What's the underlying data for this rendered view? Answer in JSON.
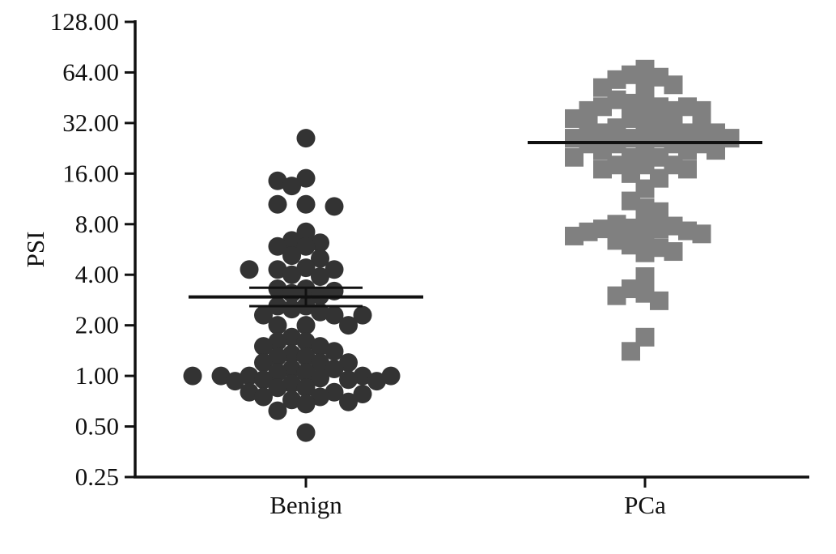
{
  "chart_data": {
    "type": "scatter",
    "title": "",
    "xlabel": "",
    "ylabel": "PSI",
    "yscale": "log2",
    "ylim": [
      0.25,
      128
    ],
    "yticks": [
      "128.00",
      "64.00",
      "32.00",
      "16.00",
      "8.00",
      "4.00",
      "2.00",
      "1.00",
      "0.50",
      "0.25"
    ],
    "yticks_values": [
      128,
      64,
      32,
      16,
      8,
      4,
      2,
      1,
      0.5,
      0.25
    ],
    "categories": [
      "Benign",
      "PCa"
    ],
    "grid": false,
    "legend": "none",
    "series": [
      {
        "category": "Benign",
        "marker": "circle",
        "color": "#333333",
        "mean": 2.95,
        "sem_low": 2.6,
        "sem_high": 3.35,
        "values": [
          26,
          15,
          14.5,
          13.5,
          10.5,
          10.5,
          10.2,
          7.2,
          6.2,
          6.4,
          5.9,
          5.9,
          5.2,
          5.0,
          4.3,
          4.4,
          4.3,
          4.3,
          4.0,
          3.9,
          3.3,
          3.1,
          3.3,
          3.2,
          3.0,
          2.6,
          2.5,
          2.4,
          2.6,
          2.3,
          2.3,
          2.3,
          2.0,
          2.0,
          2.0,
          1.7,
          1.6,
          1.6,
          1.5,
          1.5,
          1.4,
          1.35,
          1.3,
          1.3,
          1.2,
          1.2,
          1.2,
          1.1,
          1.1,
          1.05,
          1.05,
          1.0,
          1.0,
          1.0,
          1.0,
          1.0,
          0.97,
          0.95,
          0.95,
          0.93,
          0.93,
          0.9,
          0.85,
          0.85,
          0.8,
          0.8,
          0.78,
          0.75,
          0.75,
          0.72,
          0.7,
          0.68,
          0.62,
          0.46
        ]
      },
      {
        "category": "PCa",
        "marker": "square",
        "color": "#808080",
        "mean": 24.5,
        "values": [
          67,
          62,
          60,
          58,
          54,
          54,
          52,
          44,
          44,
          42,
          40,
          40,
          40,
          38,
          38,
          38,
          36,
          34,
          34,
          32,
          30,
          30,
          30,
          30,
          28,
          28,
          28,
          28,
          26,
          26,
          26,
          26,
          24,
          24,
          24,
          24,
          22,
          22,
          22,
          22,
          20,
          20,
          20,
          18,
          18,
          18,
          17,
          17,
          16,
          15,
          13,
          11,
          10,
          9.5,
          8.1,
          8.0,
          7.8,
          7.6,
          7.5,
          7.5,
          7.3,
          7.2,
          7.0,
          6.8,
          6.6,
          6.4,
          6.0,
          5.8,
          5.5,
          5.4,
          3.9,
          3.3,
          3.1,
          3.0,
          2.8,
          1.7,
          1.4
        ]
      }
    ]
  }
}
